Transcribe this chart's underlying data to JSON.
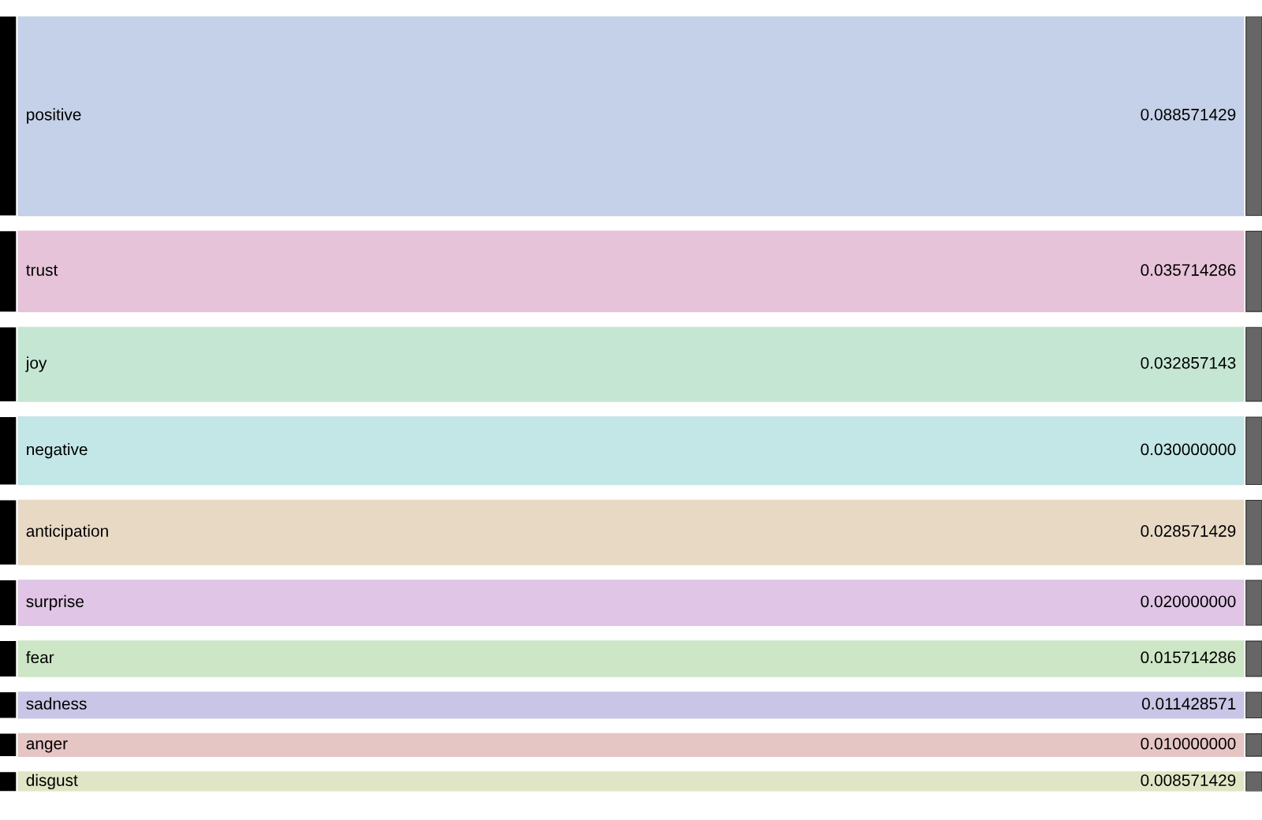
{
  "chart_data": {
    "type": "other",
    "categories": [
      "positive",
      "trust",
      "joy",
      "negative",
      "anticipation",
      "surprise",
      "fear",
      "sadness",
      "anger",
      "disgust"
    ],
    "values": [
      0.088571429,
      0.035714286,
      0.032857143,
      0.03,
      0.028571429,
      0.02,
      0.015714286,
      0.011428571,
      0.01,
      0.008571429
    ],
    "value_labels": [
      "0.088571429",
      "0.035714286",
      "0.032857143",
      "0.030000000",
      "0.028571429",
      "0.020000000",
      "0.015714286",
      "0.011428571",
      "0.010000000",
      "0.008571429"
    ],
    "colors": [
      "#c5d1e8",
      "#e6c3d8",
      "#c5e6d3",
      "#c3e6e6",
      "#e8d9c5",
      "#e0c5e6",
      "#cde6c5",
      "#c9c5e6",
      "#e6c5c5",
      "#e0e6c5"
    ]
  }
}
